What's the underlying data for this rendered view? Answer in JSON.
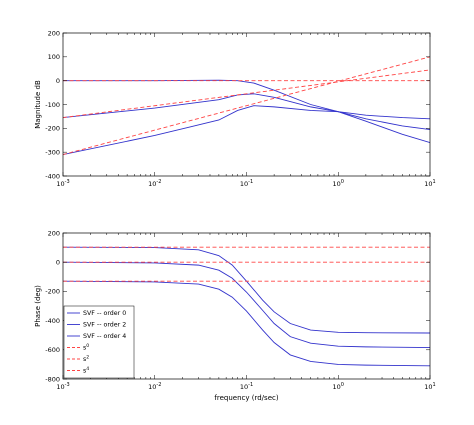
{
  "chart_data": [
    {
      "type": "line",
      "title": "",
      "xlabel": "",
      "ylabel": "Magnitude dB",
      "xscale": "log",
      "xlim": [
        0.001,
        10
      ],
      "ylim": [
        -400,
        200
      ],
      "xticks": [
        "10^-3",
        "10^-2",
        "10^-1",
        "10^0",
        "10^1"
      ],
      "yticks": [
        200,
        100,
        0,
        -100,
        -200,
        -300,
        -400
      ],
      "grid": false,
      "series": [
        {
          "name": "SVF -- order 0",
          "style": "solid",
          "color": "#3333cc",
          "x": [
            0.001,
            0.01,
            0.05,
            0.08,
            0.12,
            0.2,
            0.5,
            1,
            2,
            5,
            10
          ],
          "y": [
            0,
            0,
            2,
            0,
            -10,
            -40,
            -100,
            -130,
            -145,
            -155,
            -160
          ]
        },
        {
          "name": "SVF -- order 2",
          "style": "solid",
          "color": "#3333cc",
          "x": [
            0.001,
            0.01,
            0.05,
            0.08,
            0.12,
            0.2,
            0.5,
            1,
            2,
            5,
            10
          ],
          "y": [
            -155,
            -115,
            -80,
            -60,
            -55,
            -70,
            -110,
            -130,
            -160,
            -190,
            -205
          ]
        },
        {
          "name": "SVF -- order 4",
          "style": "solid",
          "color": "#3333cc",
          "x": [
            0.001,
            0.01,
            0.05,
            0.08,
            0.12,
            0.2,
            0.5,
            1,
            2,
            5,
            10
          ],
          "y": [
            -310,
            -230,
            -165,
            -125,
            -105,
            -110,
            -125,
            -130,
            -170,
            -225,
            -260
          ]
        },
        {
          "name": "s^0",
          "style": "dashed",
          "color": "#ff4444",
          "x": [
            0.001,
            10
          ],
          "y": [
            0,
            0
          ]
        },
        {
          "name": "s^2",
          "style": "dashed",
          "color": "#ff4444",
          "x": [
            0.001,
            10
          ],
          "y": [
            -155,
            45
          ]
        },
        {
          "name": "s^4",
          "style": "dashed",
          "color": "#ff4444",
          "x": [
            0.001,
            10
          ],
          "y": [
            -310,
            100
          ]
        }
      ]
    },
    {
      "type": "line",
      "title": "",
      "xlabel": "frequency (rd/sec)",
      "ylabel": "Phase (deg)",
      "xscale": "log",
      "xlim": [
        0.001,
        10
      ],
      "ylim": [
        -800,
        200
      ],
      "xticks": [
        "10^-3",
        "10^-2",
        "10^-1",
        "10^0",
        "10^1"
      ],
      "yticks": [
        200,
        0,
        -200,
        -400,
        -600,
        -800
      ],
      "grid": false,
      "legend": {
        "position": "lower-left",
        "entries": [
          "SVF -- order 0",
          "SVF -- order 2",
          "SVF -- order 4",
          "s0",
          "s2",
          "s4"
        ]
      },
      "series": [
        {
          "name": "SVF -- order 0",
          "style": "solid",
          "color": "#3333cc",
          "x": [
            0.001,
            0.01,
            0.03,
            0.05,
            0.07,
            0.1,
            0.15,
            0.2,
            0.3,
            0.5,
            1,
            2,
            10
          ],
          "y": [
            103,
            100,
            85,
            45,
            -20,
            -130,
            -260,
            -340,
            -420,
            -465,
            -480,
            -483,
            -485
          ]
        },
        {
          "name": "SVF -- order 2",
          "style": "solid",
          "color": "#3333cc",
          "x": [
            0.001,
            0.01,
            0.03,
            0.05,
            0.07,
            0.1,
            0.15,
            0.2,
            0.3,
            0.5,
            1,
            2,
            10
          ],
          "y": [
            0,
            -5,
            -20,
            -55,
            -110,
            -205,
            -330,
            -420,
            -510,
            -555,
            -575,
            -580,
            -585
          ]
        },
        {
          "name": "SVF -- order 4",
          "style": "solid",
          "color": "#3333cc",
          "x": [
            0.001,
            0.01,
            0.03,
            0.05,
            0.07,
            0.1,
            0.15,
            0.2,
            0.3,
            0.5,
            1,
            2,
            10
          ],
          "y": [
            -130,
            -135,
            -150,
            -185,
            -240,
            -335,
            -465,
            -550,
            -635,
            -680,
            -700,
            -705,
            -710
          ]
        },
        {
          "name": "s^0",
          "style": "dashed",
          "color": "#ff4444",
          "x": [
            0.001,
            10
          ],
          "y": [
            103,
            103
          ]
        },
        {
          "name": "s^2",
          "style": "dashed",
          "color": "#ff4444",
          "x": [
            0.001,
            10
          ],
          "y": [
            0,
            0
          ]
        },
        {
          "name": "s^4",
          "style": "dashed",
          "color": "#ff4444",
          "x": [
            0.001,
            10
          ],
          "y": [
            -130,
            -130
          ]
        }
      ]
    }
  ]
}
